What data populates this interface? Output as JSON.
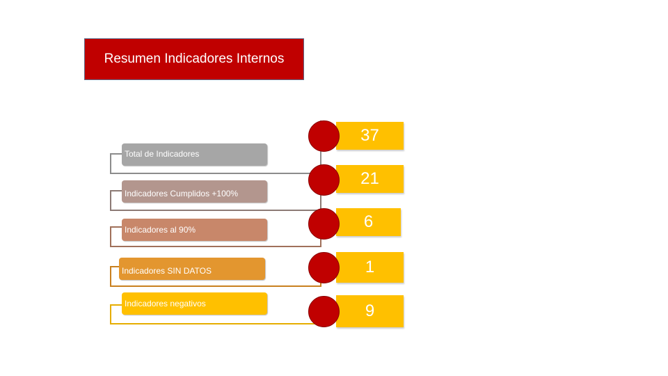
{
  "title": "Resumen Indicadores Internos",
  "colors": {
    "title_bg": "#c00000",
    "circle": "#c00000",
    "value_bg": "#ffc000",
    "value_text": "#ffffff"
  },
  "rows": [
    {
      "label": "Total de Indicadores",
      "value": "37",
      "label_color": "#a6a6a6",
      "line_color": "#8c8c8c"
    },
    {
      "label": "Indicadores Cumplidos +100%",
      "value": "21",
      "label_color": "#b3968e",
      "line_color": "#8c7a75"
    },
    {
      "label": "Indicadores al 90%",
      "value": "6",
      "label_color": "#c8876a",
      "line_color": "#a0705a"
    },
    {
      "label": "Indicadores SIN DATOS",
      "value": "1",
      "label_color": "#e3962f",
      "line_color": "#c9801f"
    },
    {
      "label": "Indicadores negativos",
      "value": "9",
      "label_color": "#ffc000",
      "line_color": "#e6ad00"
    }
  ]
}
